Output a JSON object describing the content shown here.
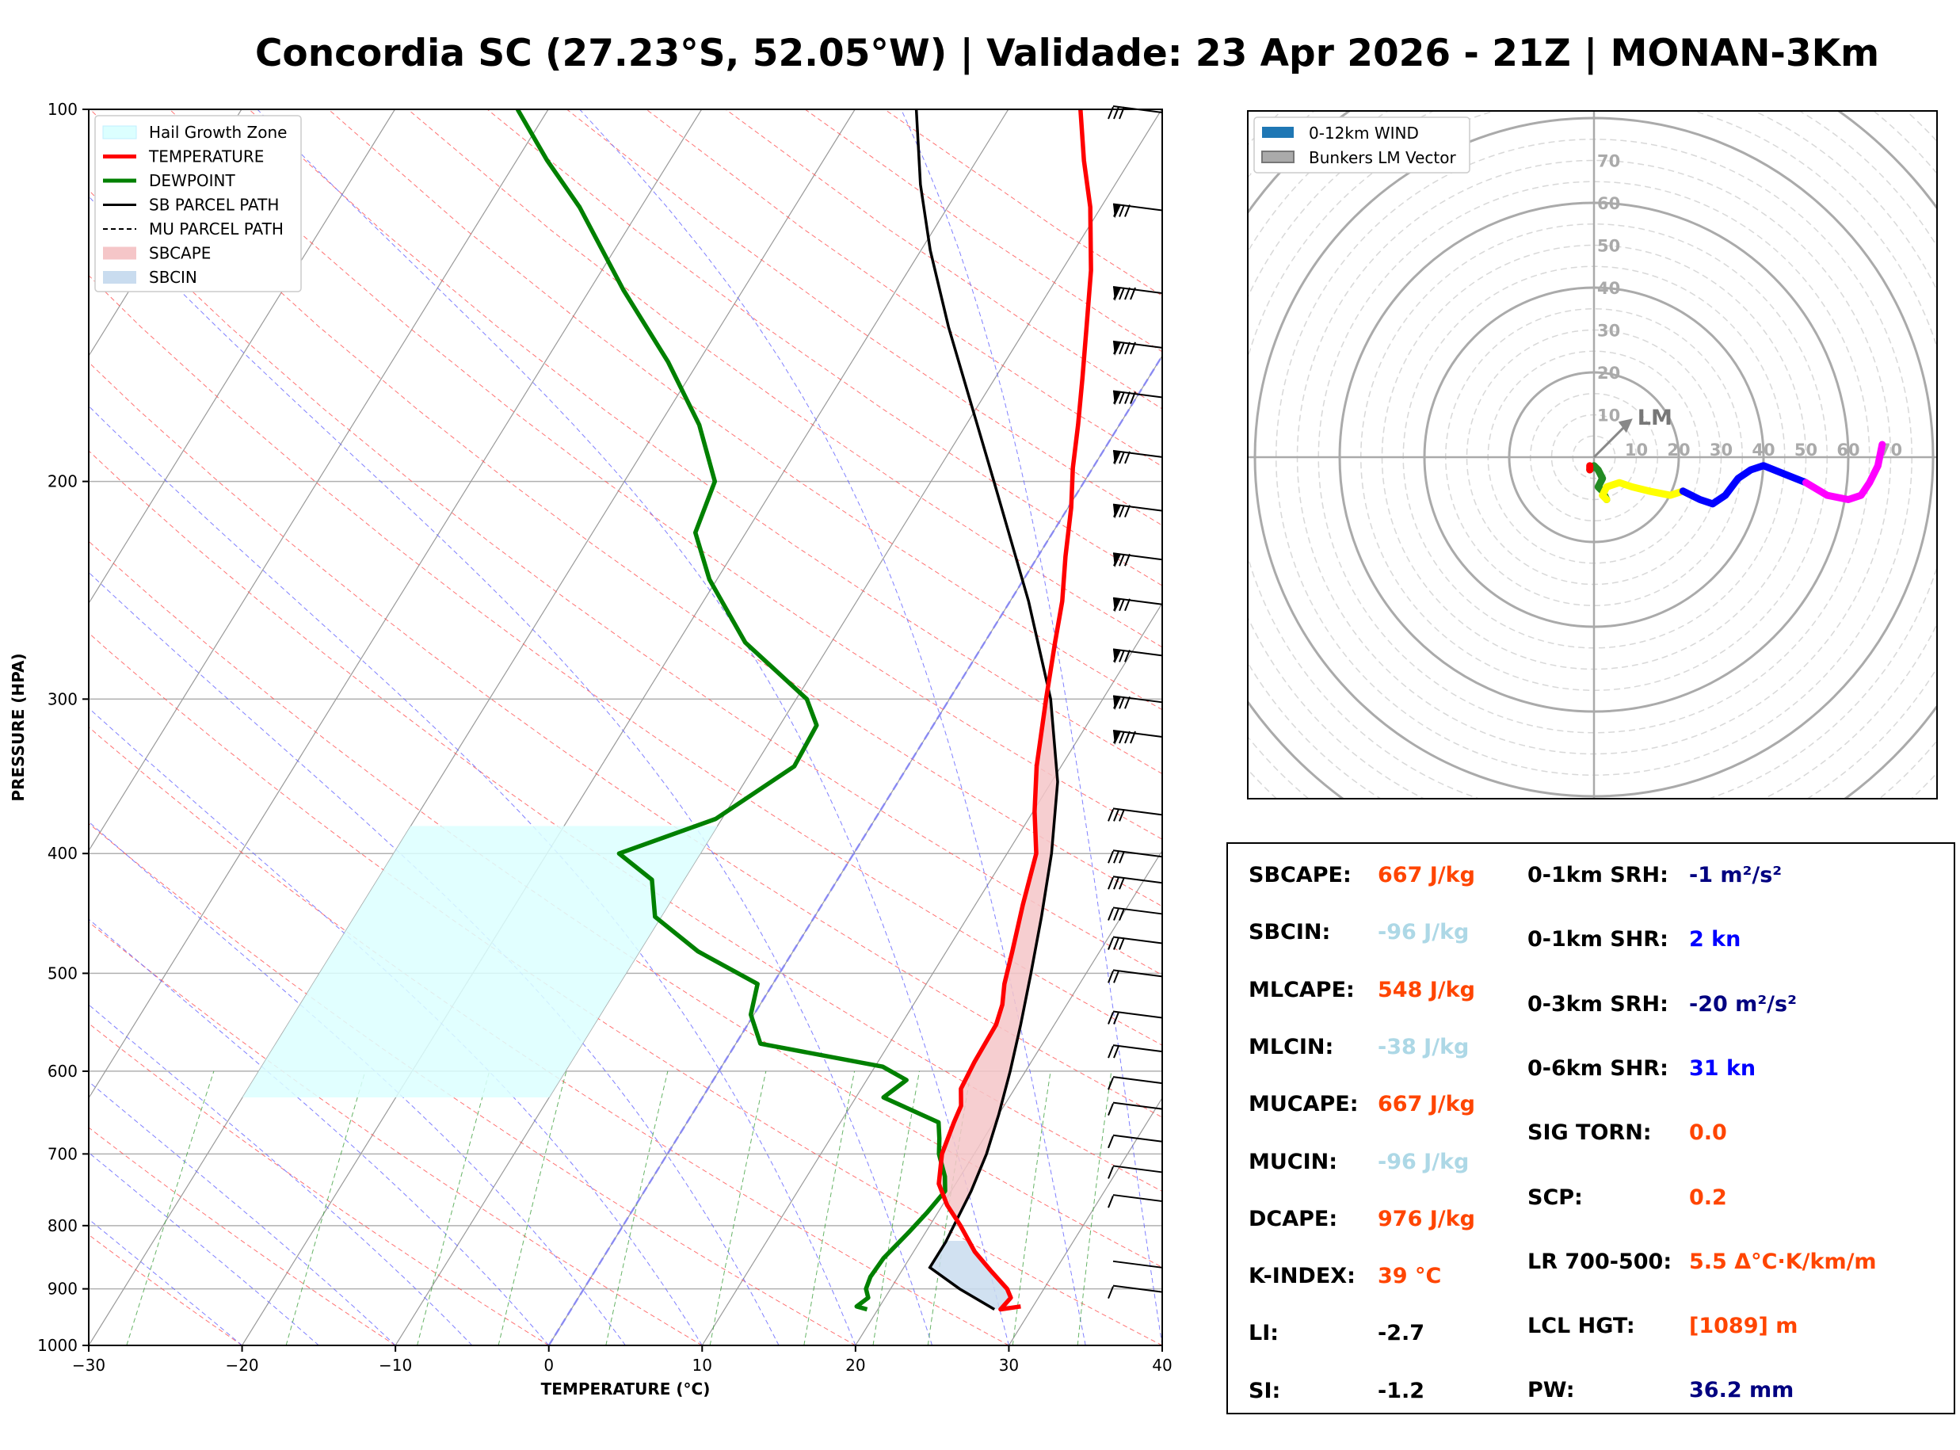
{
  "title": "Concordia SC (27.23°S, 52.05°W) | Validade: 23 Apr 2026 - 21Z | MONAN-3Km",
  "colors": {
    "temperature": "#ff0000",
    "dewpoint": "#008000",
    "sb_parcel": "#000000",
    "sbcape_fill": "#f5c6c8",
    "sbcin_fill": "#c9dcef",
    "hail_zone": "#dcffff",
    "dry_adiabat": "#ff5050",
    "moist_adiabat": "#6060ff",
    "mixing_ratio": "#40a040",
    "isotherm": "#909090",
    "zero_isotherm": "#8080ff",
    "hodo_0_1": "#228b22",
    "hodo_1_3": "#ffff00",
    "hodo_3_6": "#0000ff",
    "hodo_6_9": "#ff00ff",
    "hodo_9_12": "#ff0000",
    "value_orange": "#ff4500",
    "value_lightblue": "#add8e6",
    "value_navy": "#000080",
    "value_blue": "#0000ff"
  },
  "chart_data": [
    {
      "type": "line",
      "name": "skew-t",
      "xlabel": "TEMPERATURE (°C)",
      "ylabel": "PRESSURE (HPA)",
      "xlim": [
        -30,
        40
      ],
      "ylim": [
        1000,
        100
      ],
      "y_scale": "log",
      "x_ticks": [
        -30,
        -20,
        -10,
        0,
        10,
        20,
        30,
        40
      ],
      "x_tick_labels": [
        "−30",
        "−20",
        "−10",
        "0",
        "10",
        "20",
        "30",
        "40"
      ],
      "y_ticks": [
        1000,
        900,
        800,
        700,
        600,
        500,
        400,
        300,
        200,
        100
      ],
      "legend_position": "top-left",
      "legend": [
        "Hail Growth Zone",
        "TEMPERATURE",
        "DEWPOINT",
        "SB PARCEL PATH",
        "MU PARCEL PATH",
        "SBCAPE",
        "SBCIN"
      ],
      "temperature": [
        [
          930,
          29.2
        ],
        [
          935,
          28.0
        ],
        [
          915,
          28.2
        ],
        [
          900,
          27.6
        ],
        [
          870,
          25.8
        ],
        [
          840,
          24.0
        ],
        [
          800,
          22.0
        ],
        [
          770,
          20.3
        ],
        [
          740,
          18.9
        ],
        [
          700,
          17.9
        ],
        [
          660,
          17.4
        ],
        [
          640,
          17.2
        ],
        [
          620,
          16.5
        ],
        [
          590,
          16.3
        ],
        [
          550,
          16.2
        ],
        [
          530,
          15.8
        ],
        [
          510,
          15.1
        ],
        [
          480,
          14.3
        ],
        [
          440,
          13.1
        ],
        [
          400,
          11.9
        ],
        [
          370,
          10.1
        ],
        [
          340,
          8.4
        ],
        [
          300,
          6.3
        ],
        [
          270,
          4.6
        ],
        [
          250,
          3.4
        ],
        [
          230,
          1.8
        ],
        [
          210,
          0.2
        ],
        [
          195,
          -1.3
        ],
        [
          180,
          -2.7
        ],
        [
          165,
          -4.3
        ],
        [
          150,
          -6.1
        ],
        [
          135,
          -8.1
        ],
        [
          120,
          -10.7
        ],
        [
          110,
          -13.0
        ],
        [
          100,
          -15.3
        ]
      ],
      "dewpoint": [
        [
          935,
          19.3
        ],
        [
          930,
          18.5
        ],
        [
          915,
          18.9
        ],
        [
          900,
          18.4
        ],
        [
          880,
          18.2
        ],
        [
          850,
          18.3
        ],
        [
          810,
          18.9
        ],
        [
          780,
          19.3
        ],
        [
          750,
          19.6
        ],
        [
          730,
          19.0
        ],
        [
          700,
          17.7
        ],
        [
          680,
          17.1
        ],
        [
          660,
          16.4
        ],
        [
          630,
          11.8
        ],
        [
          610,
          12.6
        ],
        [
          595,
          10.5
        ],
        [
          570,
          1.6
        ],
        [
          540,
          -0.2
        ],
        [
          510,
          -1.0
        ],
        [
          480,
          -6.2
        ],
        [
          450,
          -10.4
        ],
        [
          420,
          -12.1
        ],
        [
          400,
          -15.3
        ],
        [
          375,
          -10.4
        ],
        [
          340,
          -7.4
        ],
        [
          315,
          -7.6
        ],
        [
          300,
          -9.3
        ],
        [
          270,
          -15.6
        ],
        [
          240,
          -20.5
        ],
        [
          220,
          -23.3
        ],
        [
          200,
          -24.1
        ],
        [
          180,
          -27.4
        ],
        [
          160,
          -32.0
        ],
        [
          140,
          -37.8
        ],
        [
          120,
          -44.0
        ],
        [
          110,
          -48.0
        ],
        [
          100,
          -52.0
        ]
      ],
      "sb_parcel": [
        [
          935,
          27.6
        ],
        [
          900,
          24.5
        ],
        [
          865,
          21.7
        ],
        [
          825,
          21.7
        ],
        [
          750,
          21.3
        ],
        [
          700,
          20.8
        ],
        [
          650,
          20.0
        ],
        [
          600,
          19.0
        ],
        [
          550,
          17.8
        ],
        [
          500,
          16.4
        ],
        [
          450,
          14.8
        ],
        [
          400,
          12.9
        ],
        [
          350,
          10.4
        ],
        [
          300,
          6.6
        ],
        [
          250,
          1.2
        ],
        [
          200,
          -5.9
        ],
        [
          170,
          -11.1
        ],
        [
          150,
          -15.1
        ],
        [
          130,
          -19.4
        ],
        [
          115,
          -22.7
        ],
        [
          100,
          -26.0
        ]
      ],
      "hail_growth_zone": [
        [
          630,
          -10
        ],
        [
          630,
          -30
        ],
        [
          380,
          -30
        ],
        [
          380,
          -10
        ]
      ]
    },
    {
      "type": "line",
      "name": "hodograph",
      "rings": [
        10,
        20,
        30,
        40,
        50,
        60,
        70
      ],
      "legend_position": "top-left",
      "legend": [
        "0-12km WIND",
        "Bunkers LM Vector"
      ],
      "annotation": "LM",
      "lm_vector": [
        8,
        8
      ],
      "segments": [
        {
          "layer": "0-1km",
          "uv": [
            [
              -1,
              -3
            ],
            [
              0,
              -2
            ],
            [
              1,
              -3
            ],
            [
              2,
              -5
            ],
            [
              1,
              -7
            ],
            [
              2,
              -8
            ],
            [
              3,
              -10
            ]
          ]
        },
        {
          "layer": "1-3km",
          "uv": [
            [
              3,
              -10
            ],
            [
              2,
              -9
            ],
            [
              3,
              -7
            ],
            [
              6,
              -6
            ],
            [
              9,
              -7
            ],
            [
              13,
              -8
            ],
            [
              18,
              -9
            ],
            [
              21,
              -8
            ]
          ]
        },
        {
          "layer": "3-6km",
          "uv": [
            [
              21,
              -8
            ],
            [
              25,
              -10
            ],
            [
              28,
              -11
            ],
            [
              31,
              -9
            ],
            [
              34,
              -5
            ],
            [
              37,
              -3
            ],
            [
              40,
              -2
            ],
            [
              45,
              -4
            ],
            [
              50,
              -6
            ]
          ]
        },
        {
          "layer": "6-9km",
          "uv": [
            [
              50,
              -6
            ],
            [
              55,
              -9
            ],
            [
              60,
              -10
            ],
            [
              63,
              -9
            ],
            [
              65,
              -6
            ],
            [
              67,
              -2
            ],
            [
              68,
              3
            ]
          ]
        },
        {
          "layer": "9-12km",
          "uv": [
            [
              -1,
              -2
            ],
            [
              -1,
              -3
            ]
          ]
        }
      ]
    }
  ],
  "indices": {
    "col1": [
      {
        "label": "SBCAPE:",
        "value": "667 J/kg",
        "color": "#ff4500"
      },
      {
        "label": "SBCIN:",
        "value": "-96 J/kg",
        "color": "#add8e6"
      },
      {
        "label": "MLCAPE:",
        "value": "548 J/kg",
        "color": "#ff4500"
      },
      {
        "label": "MLCIN:",
        "value": "-38 J/kg",
        "color": "#add8e6"
      },
      {
        "label": "MUCAPE:",
        "value": "667 J/kg",
        "color": "#ff4500"
      },
      {
        "label": "MUCIN:",
        "value": "-96 J/kg",
        "color": "#add8e6"
      },
      {
        "label": "DCAPE:",
        "value": "976 J/kg",
        "color": "#ff4500"
      },
      {
        "label": "K-INDEX:",
        "value": "39 °C",
        "color": "#ff4500"
      },
      {
        "label": "LI:",
        "value": "-2.7",
        "color": "#000000"
      },
      {
        "label": "SI:",
        "value": "-1.2",
        "color": "#000000"
      }
    ],
    "col2": [
      {
        "label": "0-1km SRH:",
        "value": "-1 m²/s²",
        "color": "#000080"
      },
      {
        "label": "0-1km SHR:",
        "value": "2 kn",
        "color": "#0000ff"
      },
      {
        "label": "0-3km SRH:",
        "value": "-20 m²/s²",
        "color": "#000080"
      },
      {
        "label": "0-6km SHR:",
        "value": "31 kn",
        "color": "#0000ff"
      },
      {
        "label": "SIG TORN:",
        "value": "0.0",
        "color": "#ff4500"
      },
      {
        "label": "SCP:",
        "value": "0.2",
        "color": "#ff4500"
      },
      {
        "label": "LR 700-500:",
        "value": "5.5 Δ°C·K/km/m",
        "color": "#ff4500"
      },
      {
        "label": "LCL HGT:",
        "value": "[1089] m",
        "color": "#ff4500"
      },
      {
        "label": "PW:",
        "value": "36.2 mm",
        "color": "#000080"
      }
    ]
  }
}
